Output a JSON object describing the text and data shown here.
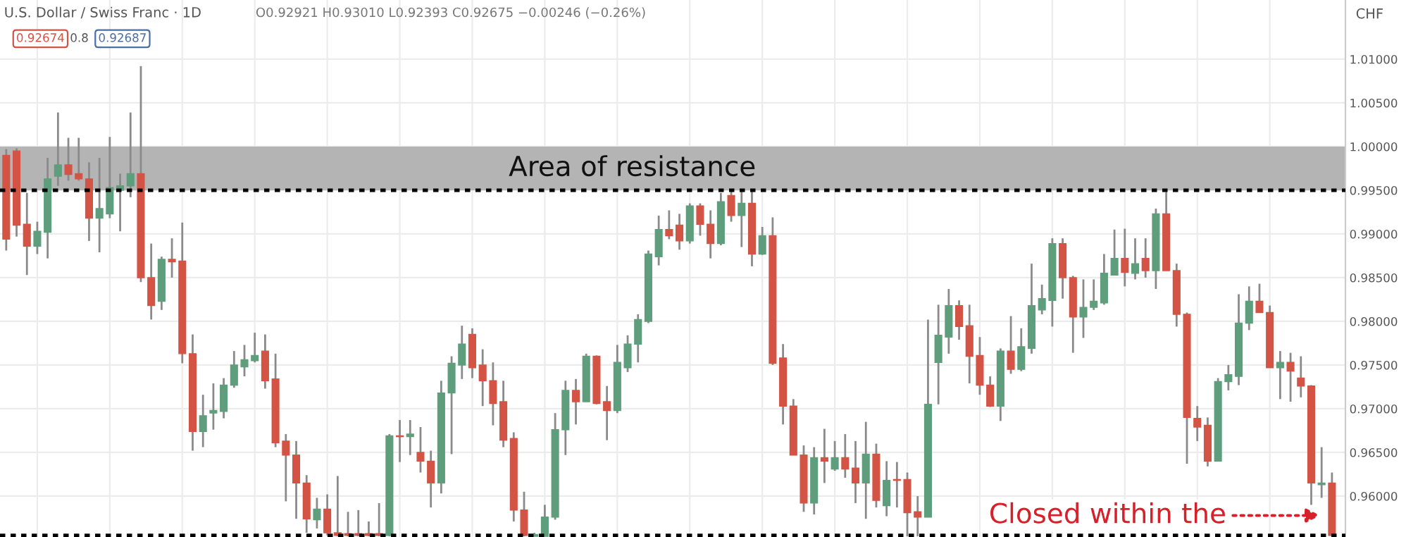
{
  "chart_data": {
    "type": "candlestick",
    "annotations": [
      "U.S. Dollar / Swiss Franc · 1D",
      "O0.92921 H0.93010 L0.92393 C0.92675 −0.00246 (−0.26%)",
      "0.92674",
      "0.8",
      "0.92687",
      "Closed within the"
    ],
    "ylabel": "CHF",
    "categories": [
      null,
      null,
      null,
      null,
      null,
      null,
      null,
      null,
      null,
      null,
      null,
      null,
      null,
      null,
      null,
      null,
      null,
      null,
      null,
      null,
      null,
      null,
      null,
      null,
      null,
      null,
      null,
      null,
      null,
      null,
      null,
      null,
      null,
      null,
      null,
      null,
      null,
      null,
      null,
      null,
      null,
      null,
      null,
      null,
      null,
      null,
      null,
      null,
      null,
      null,
      null,
      null,
      null,
      null,
      null,
      null,
      null,
      null,
      null,
      null,
      null,
      null,
      null,
      null,
      null,
      null,
      null,
      null,
      null,
      null,
      null,
      null,
      null,
      null,
      null,
      null,
      null,
      null,
      null,
      null,
      null,
      null,
      null,
      null,
      null,
      null,
      null,
      null,
      null,
      null,
      null,
      null,
      null,
      null,
      null,
      null,
      null,
      null,
      null,
      null,
      null,
      null,
      null,
      null,
      null,
      null,
      null,
      null,
      null,
      null,
      null,
      null,
      null,
      null,
      null,
      null,
      null,
      null,
      null,
      null,
      null,
      null,
      null,
      null,
      null,
      null,
      null,
      null,
      null
    ],
    "ohlc": [
      [
        0.999,
        0.9997,
        0.9881,
        0.9894
      ],
      [
        0.9995,
        0.9998,
        0.9897,
        0.991
      ],
      [
        0.9911,
        0.9947,
        0.9853,
        0.9886
      ],
      [
        0.9886,
        0.9914,
        0.9877,
        0.9903
      ],
      [
        0.9902,
        0.9987,
        0.9872,
        0.9963
      ],
      [
        0.9966,
        1.0039,
        0.9955,
        0.9979
      ],
      [
        0.9979,
        1.001,
        0.9961,
        0.9968
      ],
      [
        0.9969,
        1.001,
        0.9961,
        0.9963
      ],
      [
        0.9963,
        0.9982,
        0.9892,
        0.9918
      ],
      [
        0.9918,
        0.9987,
        0.9879,
        0.9929
      ],
      [
        0.9923,
        1.0011,
        0.9918,
        0.9953
      ],
      [
        0.995,
        0.9969,
        0.9903,
        0.9955
      ],
      [
        0.9955,
        1.0039,
        0.9942,
        0.9969
      ],
      [
        0.9969,
        1.0092,
        0.9845,
        0.985
      ],
      [
        0.985,
        0.9889,
        0.9802,
        0.9818
      ],
      [
        0.9823,
        0.9874,
        0.9813,
        0.9871
      ],
      [
        0.9871,
        0.9895,
        0.985,
        0.9868
      ],
      [
        0.9869,
        0.9913,
        0.9752,
        0.9763
      ],
      [
        0.9763,
        0.9785,
        0.9652,
        0.9674
      ],
      [
        0.9674,
        0.9716,
        0.9656,
        0.9692
      ],
      [
        0.9695,
        0.9729,
        0.9676,
        0.9698
      ],
      [
        0.9697,
        0.9735,
        0.9689,
        0.9727
      ],
      [
        0.9727,
        0.9766,
        0.9724,
        0.975
      ],
      [
        0.9748,
        0.9773,
        0.9737,
        0.9756
      ],
      [
        0.9755,
        0.9787,
        0.9753,
        0.9761
      ],
      [
        0.9766,
        0.9785,
        0.9723,
        0.9732
      ],
      [
        0.9734,
        0.9763,
        0.9656,
        0.9661
      ],
      [
        0.9663,
        0.9671,
        0.9594,
        0.9647
      ],
      [
        0.9647,
        0.9663,
        0.9574,
        0.9615
      ],
      [
        0.9615,
        0.9624,
        0.9558,
        0.9574
      ],
      [
        0.9573,
        0.9598,
        0.9563,
        0.9585
      ],
      [
        0.9585,
        0.9602,
        0.9555,
        0.9558
      ],
      [
        0.9558,
        0.9623,
        0.9554,
        0.9555
      ],
      [
        0.9557,
        0.9582,
        0.9554,
        0.9555
      ],
      [
        0.9557,
        0.9584,
        0.9554,
        0.9555
      ],
      [
        0.9557,
        0.9571,
        0.9554,
        0.9555
      ],
      [
        0.9557,
        0.9592,
        0.9554,
        0.9555
      ],
      [
        0.9555,
        0.9671,
        0.9554,
        0.9669
      ],
      [
        0.9669,
        0.9687,
        0.9639,
        0.9668
      ],
      [
        0.9668,
        0.9687,
        0.9647,
        0.9671
      ],
      [
        0.965,
        0.9679,
        0.9627,
        0.964
      ],
      [
        0.964,
        0.9652,
        0.9587,
        0.9615
      ],
      [
        0.9615,
        0.9732,
        0.9603,
        0.9718
      ],
      [
        0.9718,
        0.976,
        0.9648,
        0.9752
      ],
      [
        0.975,
        0.9795,
        0.9734,
        0.9774
      ],
      [
        0.9785,
        0.9792,
        0.9735,
        0.9747
      ],
      [
        0.975,
        0.9768,
        0.9703,
        0.9732
      ],
      [
        0.9732,
        0.9753,
        0.9681,
        0.9706
      ],
      [
        0.9708,
        0.9732,
        0.9656,
        0.9664
      ],
      [
        0.9666,
        0.9673,
        0.9571,
        0.9584
      ],
      [
        0.9584,
        0.9605,
        0.9554,
        0.9555
      ],
      [
        0.9554,
        0.9558,
        0.9554,
        0.9556
      ],
      [
        0.9554,
        0.959,
        0.9554,
        0.9576
      ],
      [
        0.9576,
        0.9695,
        0.9573,
        0.9676
      ],
      [
        0.9676,
        0.9732,
        0.9647,
        0.9721
      ],
      [
        0.9721,
        0.9734,
        0.9682,
        0.9708
      ],
      [
        0.9708,
        0.9763,
        0.9708,
        0.976
      ],
      [
        0.976,
        0.9761,
        0.9705,
        0.9706
      ],
      [
        0.9708,
        0.9726,
        0.9664,
        0.9698
      ],
      [
        0.9698,
        0.9773,
        0.9695,
        0.9753
      ],
      [
        0.9747,
        0.9784,
        0.9742,
        0.9774
      ],
      [
        0.9774,
        0.9808,
        0.9753,
        0.9802
      ],
      [
        0.98,
        0.9881,
        0.9798,
        0.9877
      ],
      [
        0.9874,
        0.9921,
        0.9864,
        0.9905
      ],
      [
        0.9905,
        0.9927,
        0.9894,
        0.9898
      ],
      [
        0.991,
        0.9923,
        0.9882,
        0.9892
      ],
      [
        0.9892,
        0.9935,
        0.9889,
        0.9932
      ],
      [
        0.9932,
        0.9935,
        0.9898,
        0.9911
      ],
      [
        0.9911,
        0.9927,
        0.9872,
        0.9889
      ],
      [
        0.9889,
        0.9947,
        0.9887,
        0.9937
      ],
      [
        0.9944,
        0.995,
        0.9914,
        0.9921
      ],
      [
        0.9921,
        0.995,
        0.9885,
        0.9935
      ],
      [
        0.9935,
        0.995,
        0.9863,
        0.9877
      ],
      [
        0.9877,
        0.9908,
        0.9876,
        0.9898
      ],
      [
        0.9898,
        0.9919,
        0.975,
        0.9752
      ],
      [
        0.9758,
        0.9774,
        0.9682,
        0.9703
      ],
      [
        0.9703,
        0.9711,
        0.9647,
        0.9647
      ],
      [
        0.9647,
        0.9658,
        0.9582,
        0.9592
      ],
      [
        0.9592,
        0.9656,
        0.9579,
        0.9644
      ],
      [
        0.9644,
        0.9677,
        0.9615,
        0.964
      ],
      [
        0.9631,
        0.9663,
        0.9629,
        0.9644
      ],
      [
        0.9644,
        0.9671,
        0.9621,
        0.9631
      ],
      [
        0.9632,
        0.9663,
        0.9592,
        0.9615
      ],
      [
        0.9615,
        0.9685,
        0.9574,
        0.9648
      ],
      [
        0.9648,
        0.966,
        0.9587,
        0.9595
      ],
      [
        0.9589,
        0.964,
        0.9577,
        0.9618
      ],
      [
        0.9619,
        0.9639,
        0.9587,
        0.9618
      ],
      [
        0.9619,
        0.9627,
        0.9554,
        0.9581
      ],
      [
        0.9582,
        0.96,
        0.9554,
        0.9576
      ],
      [
        0.9576,
        0.9802,
        0.9576,
        0.9705
      ],
      [
        0.9753,
        0.9819,
        0.9705,
        0.9784
      ],
      [
        0.9782,
        0.9837,
        0.9763,
        0.9818
      ],
      [
        0.9818,
        0.9824,
        0.9779,
        0.9794
      ],
      [
        0.9795,
        0.9819,
        0.9729,
        0.976
      ],
      [
        0.9761,
        0.9782,
        0.9716,
        0.9727
      ],
      [
        0.9727,
        0.9737,
        0.9702,
        0.9703
      ],
      [
        0.9703,
        0.9769,
        0.9686,
        0.9766
      ],
      [
        0.9766,
        0.9806,
        0.974,
        0.9745
      ],
      [
        0.9745,
        0.9792,
        0.9743,
        0.9771
      ],
      [
        0.9769,
        0.9866,
        0.9763,
        0.9818
      ],
      [
        0.9813,
        0.9842,
        0.9808,
        0.9826
      ],
      [
        0.9824,
        0.9895,
        0.9794,
        0.9889
      ],
      [
        0.9889,
        0.9895,
        0.9826,
        0.985
      ],
      [
        0.985,
        0.9852,
        0.9764,
        0.9805
      ],
      [
        0.9805,
        0.9848,
        0.9781,
        0.9816
      ],
      [
        0.9816,
        0.9848,
        0.9813,
        0.9823
      ],
      [
        0.9821,
        0.9877,
        0.9819,
        0.9855
      ],
      [
        0.9853,
        0.9905,
        0.9853,
        0.9872
      ],
      [
        0.9872,
        0.9906,
        0.984,
        0.9856
      ],
      [
        0.9855,
        0.9895,
        0.9848,
        0.9866
      ],
      [
        0.9872,
        0.9895,
        0.985,
        0.9858
      ],
      [
        0.9858,
        0.9929,
        0.9837,
        0.9923
      ],
      [
        0.9923,
        0.9948,
        0.9858,
        0.9858
      ],
      [
        0.9858,
        0.9866,
        0.9794,
        0.9808
      ],
      [
        0.9808,
        0.981,
        0.9637,
        0.969
      ],
      [
        0.9689,
        0.9703,
        0.9663,
        0.9679
      ],
      [
        0.9681,
        0.969,
        0.9634,
        0.964
      ],
      [
        0.964,
        0.9735,
        0.964,
        0.9731
      ],
      [
        0.9731,
        0.975,
        0.9721,
        0.9739
      ],
      [
        0.9737,
        0.9831,
        0.9727,
        0.9798
      ],
      [
        0.9798,
        0.984,
        0.979,
        0.9823
      ],
      [
        0.9823,
        0.9843,
        0.981,
        0.981
      ],
      [
        0.981,
        0.9818,
        0.9747,
        0.9747
      ],
      [
        0.9747,
        0.9766,
        0.9711,
        0.9753
      ],
      [
        0.9753,
        0.9764,
        0.9708,
        0.9743
      ],
      [
        0.9735,
        0.976,
        0.9713,
        0.9726
      ],
      [
        0.9726,
        0.9727,
        0.959,
        0.9615
      ],
      [
        0.9613,
        0.9656,
        0.9598,
        0.9615
      ],
      [
        0.9615,
        0.9627,
        0.9554,
        0.9555
      ]
    ],
    "colors": [
      "#d35445",
      "#d35445",
      "#d35445",
      "#5e9e7c",
      "#5e9e7c",
      "#5e9e7c",
      "#d35445",
      "#d35445",
      "#d35445",
      "#5e9e7c",
      "#5e9e7c",
      "#5e9e7c",
      "#5e9e7c",
      "#d35445",
      "#d35445",
      "#5e9e7c",
      "#d35445",
      "#d35445",
      "#d35445",
      "#5e9e7c",
      "#5e9e7c",
      "#5e9e7c",
      "#5e9e7c",
      "#5e9e7c",
      "#5e9e7c",
      "#d35445",
      "#d35445",
      "#d35445",
      "#d35445",
      "#d35445",
      "#5e9e7c",
      "#d35445",
      "#d35445",
      "#d35445",
      "#d35445",
      "#d35445",
      "#d35445",
      "#5e9e7c",
      "#d35445",
      "#5e9e7c",
      "#d35445",
      "#d35445",
      "#5e9e7c",
      "#5e9e7c",
      "#5e9e7c",
      "#d35445",
      "#d35445",
      "#d35445",
      "#d35445",
      "#d35445",
      "#d35445",
      "#5e9e7c",
      "#5e9e7c",
      "#5e9e7c",
      "#5e9e7c",
      "#d35445",
      "#5e9e7c",
      "#d35445",
      "#d35445",
      "#5e9e7c",
      "#5e9e7c",
      "#5e9e7c",
      "#5e9e7c",
      "#5e9e7c",
      "#d35445",
      "#d35445",
      "#5e9e7c",
      "#d35445",
      "#d35445",
      "#5e9e7c",
      "#d35445",
      "#5e9e7c",
      "#d35445",
      "#5e9e7c",
      "#d35445",
      "#d35445",
      "#d35445",
      "#d35445",
      "#5e9e7c",
      "#d35445",
      "#5e9e7c",
      "#d35445",
      "#d35445",
      "#5e9e7c",
      "#d35445",
      "#5e9e7c",
      "#d35445",
      "#d35445",
      "#d35445",
      "#5e9e7c",
      "#5e9e7c",
      "#5e9e7c",
      "#d35445",
      "#d35445",
      "#d35445",
      "#d35445",
      "#5e9e7c",
      "#d35445",
      "#5e9e7c",
      "#5e9e7c",
      "#5e9e7c",
      "#5e9e7c",
      "#d35445",
      "#d35445",
      "#5e9e7c",
      "#5e9e7c",
      "#5e9e7c",
      "#5e9e7c",
      "#d35445",
      "#5e9e7c",
      "#d35445",
      "#5e9e7c",
      "#d35445",
      "#d35445",
      "#d35445",
      "#d35445",
      "#d35445",
      "#5e9e7c",
      "#5e9e7c",
      "#5e9e7c",
      "#5e9e7c",
      "#d35445",
      "#d35445",
      "#5e9e7c",
      "#d35445",
      "#d35445",
      "#d35445",
      "#5e9e7c",
      "#d35445"
    ],
    "ylim": [
      0.95532,
      1.01677
    ],
    "yticks": [
      {
        "value": 0.96,
        "label": "0.96000"
      },
      {
        "value": 0.965,
        "label": "0.96500"
      },
      {
        "value": 0.97,
        "label": "0.97000"
      },
      {
        "value": 0.975,
        "label": "0.97500"
      },
      {
        "value": 0.98,
        "label": "0.98000"
      },
      {
        "value": 0.985,
        "label": "0.98500"
      },
      {
        "value": 0.99,
        "label": "0.99000"
      },
      {
        "value": 0.995,
        "label": "0.99500"
      },
      {
        "value": 1.0,
        "label": "1.00000"
      },
      {
        "value": 1.005,
        "label": "1.00500"
      },
      {
        "value": 1.01,
        "label": "1.01000"
      }
    ],
    "bands": [
      {
        "axis": "y",
        "from": 0.995,
        "to": 1.0,
        "label": "Area of resistance",
        "color": "#b4b4b4"
      }
    ],
    "ref_lines": [
      {
        "axis": "y",
        "value": 0.995,
        "label": null,
        "color": "#000000",
        "line_style": "dotted"
      },
      {
        "axis": "y",
        "value": 0.9555,
        "label": null,
        "color": "#000000",
        "line_style": "dotted"
      }
    ],
    "grid": true,
    "tick_labels": "y"
  }
}
